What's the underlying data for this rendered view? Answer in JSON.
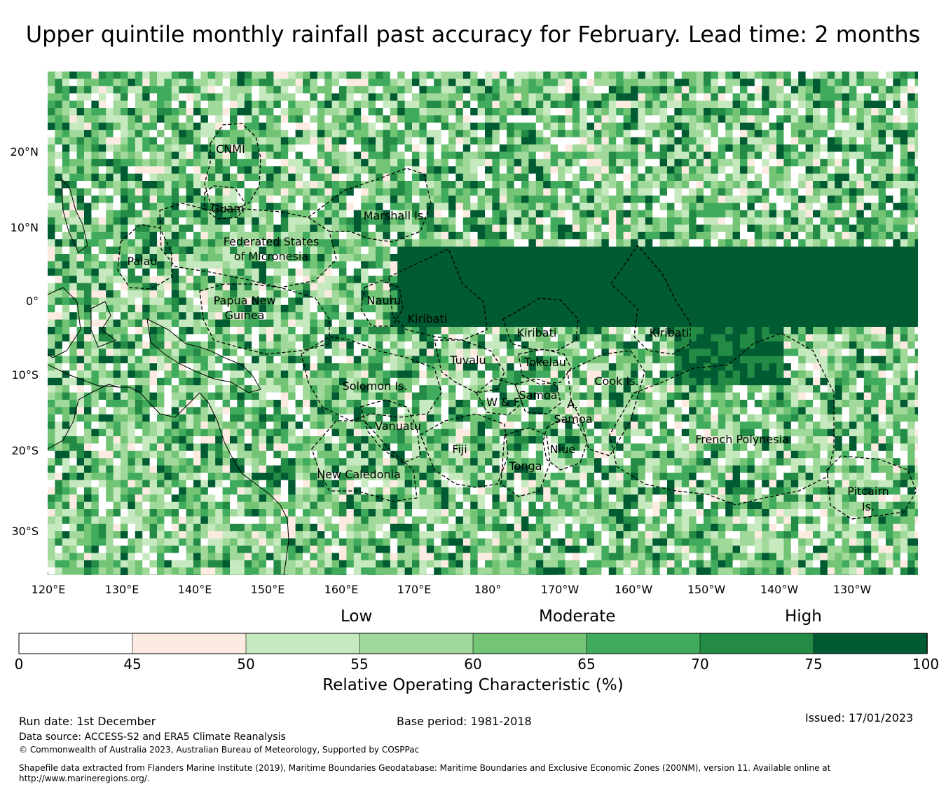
{
  "title": "Upper quintile monthly rainfall past accuracy for February. Lead time: 2 months",
  "map": {
    "lat_ticks": [
      "20°N",
      "10°N",
      "0°",
      "10°S",
      "20°S",
      "30°S"
    ],
    "lon_ticks": [
      "120°E",
      "130°E",
      "140°E",
      "150°E",
      "160°E",
      "170°E",
      "180°",
      "170°W",
      "160°W",
      "150°W",
      "140°W",
      "130°W"
    ],
    "region_labels": [
      "CNMI",
      "Guam",
      "Marshall Is.",
      "Federated States",
      "of Micronesia",
      "Palau",
      "Papua New",
      "Guinea",
      "Nauru",
      "Kiribati",
      "Kiribati",
      "Kiribati",
      "Tuvalu",
      "Tokelau",
      "Cook Is.",
      "Solomon Is.",
      "W & F",
      "Samoa",
      "A.",
      "Samoa",
      "Vanuatu",
      "Fiji",
      "Niue",
      "Tonga",
      "New Caledonia",
      "French Polynesia",
      "Pitcairn",
      "Is."
    ]
  },
  "chart_data": {
    "type": "heatmap",
    "title": "Upper quintile monthly rainfall past accuracy for February. Lead time: 2 months",
    "x_range": [
      120,
      240
    ],
    "y_range": [
      -36,
      31
    ],
    "colorbar": {
      "label": "Relative Operating Characteristic (%)",
      "boundaries": [
        0,
        45,
        50,
        55,
        60,
        65,
        70,
        75,
        100
      ],
      "colors": [
        "#ffffff",
        "#fdebe1",
        "#c7e9c0",
        "#a1d99b",
        "#74c476",
        "#41ab5d",
        "#238b45",
        "#005a32"
      ],
      "category_labels": [
        "Low",
        "Moderate",
        "High"
      ]
    }
  },
  "colorbar_ticks": [
    "0",
    "45",
    "50",
    "55",
    "60",
    "65",
    "70",
    "75",
    "100"
  ],
  "footer": {
    "run_date": "Run date: 1st December",
    "base_period": "Base period: 1981-2018",
    "issued": "Issued: 17/01/2023",
    "data_source": "Data source: ACCESS-S2 and ERA5 Climate Reanalysis",
    "copyright": "© Commonwealth of Australia 2023, Australian Bureau of Meteorology, Supported by COSPPac",
    "shapefile_line1": "Shapefile data extracted from Flanders Marine Institute (2019), Maritime Boundaries Geodatabase: Maritime Boundaries and Exclusive Economic Zones (200NM), version 11. Available online at",
    "shapefile_line2": "http://www.marineregions.org/."
  }
}
